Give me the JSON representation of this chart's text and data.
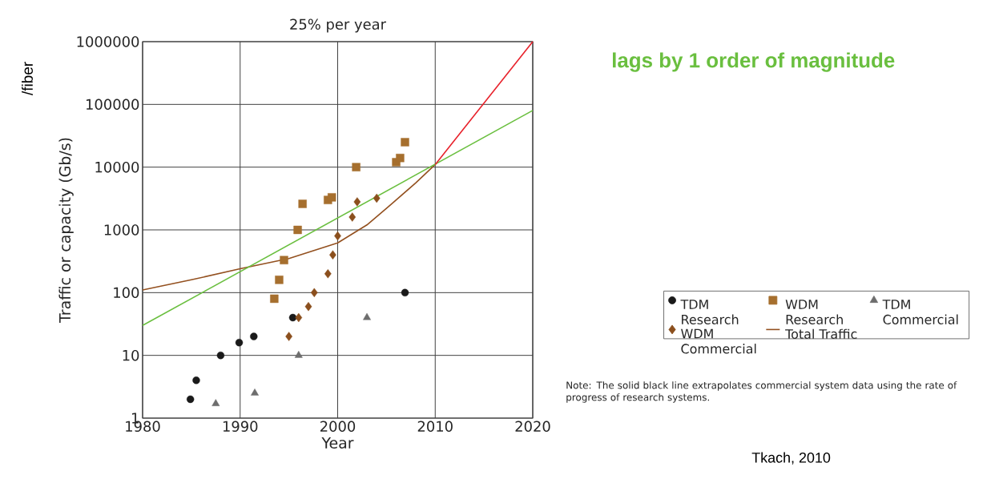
{
  "chart_data": {
    "type": "scatter",
    "title": "25% per year",
    "xlabel": "Year",
    "ylabel": "Traffic or capacity (Gb/s)",
    "xlim": [
      1980,
      2020
    ],
    "ylim": [
      1,
      1000000
    ],
    "xticks": [
      1980,
      1990,
      2000,
      2010,
      2020
    ],
    "yticks": [
      1,
      10,
      100,
      1000,
      10000,
      100000,
      1000000
    ],
    "log": "y",
    "grid": true,
    "legend": "right",
    "series": [
      {
        "name": "TDM Research",
        "marker": "circle",
        "color": "#1a1a1a",
        "x": [
          1984.9,
          1985.5,
          1988.0,
          1989.9,
          1991.4,
          1995.4,
          2006.9
        ],
        "values": [
          2,
          4,
          10,
          16,
          20,
          40,
          100
        ]
      },
      {
        "name": "WDM Research",
        "marker": "square",
        "color": "#a66f2e",
        "x": [
          1993.5,
          1994.0,
          1994.5,
          1995.9,
          1996.4,
          1999.0,
          1999.4,
          2001.9,
          2006.0,
          2006.4,
          2006.9
        ],
        "values": [
          80,
          160,
          330,
          1000,
          2600,
          3000,
          3300,
          10000,
          12000,
          14000,
          25000
        ]
      },
      {
        "name": "TDM Commercial",
        "marker": "triangle",
        "color": "#6d6d6d",
        "x": [
          1987.5,
          1991.5,
          1996.0,
          2003.0
        ],
        "values": [
          1.7,
          2.5,
          10,
          40
        ]
      },
      {
        "name": "WDM Commercial",
        "marker": "diamond",
        "color": "#8b4f1d",
        "x": [
          1995.0,
          1996.0,
          1997.0,
          1997.6,
          1999.0,
          1999.5,
          2000.0,
          2001.5,
          2002.0,
          2004.0
        ],
        "values": [
          20,
          40,
          60,
          100,
          200,
          400,
          800,
          1600,
          2800,
          3200
        ]
      },
      {
        "name": "Total Traffic",
        "type": "line",
        "marker": "none",
        "color": "#93501f",
        "x": [
          1980,
          1985,
          1990,
          1995,
          2000,
          2003,
          2005,
          2008,
          2010
        ],
        "values": [
          110,
          160,
          240,
          350,
          620,
          1200,
          2200,
          5600,
          11000
        ]
      },
      {
        "name": "lags by 1 order of magnitude",
        "type": "line",
        "marker": "none",
        "color": "#6abf3f",
        "x": [
          1980,
          2020
        ],
        "values": [
          30,
          80000
        ]
      },
      {
        "type": "line",
        "marker": "none",
        "color": "#e8202a",
        "x": [
          2010,
          2020
        ],
        "values": [
          11000,
          1000000
        ]
      }
    ],
    "annotations": [
      "/fiber",
      "Note: The solid black line extrapolates commercial system data using the rate of progress of research systems.",
      "Tkach, 2010"
    ]
  }
}
